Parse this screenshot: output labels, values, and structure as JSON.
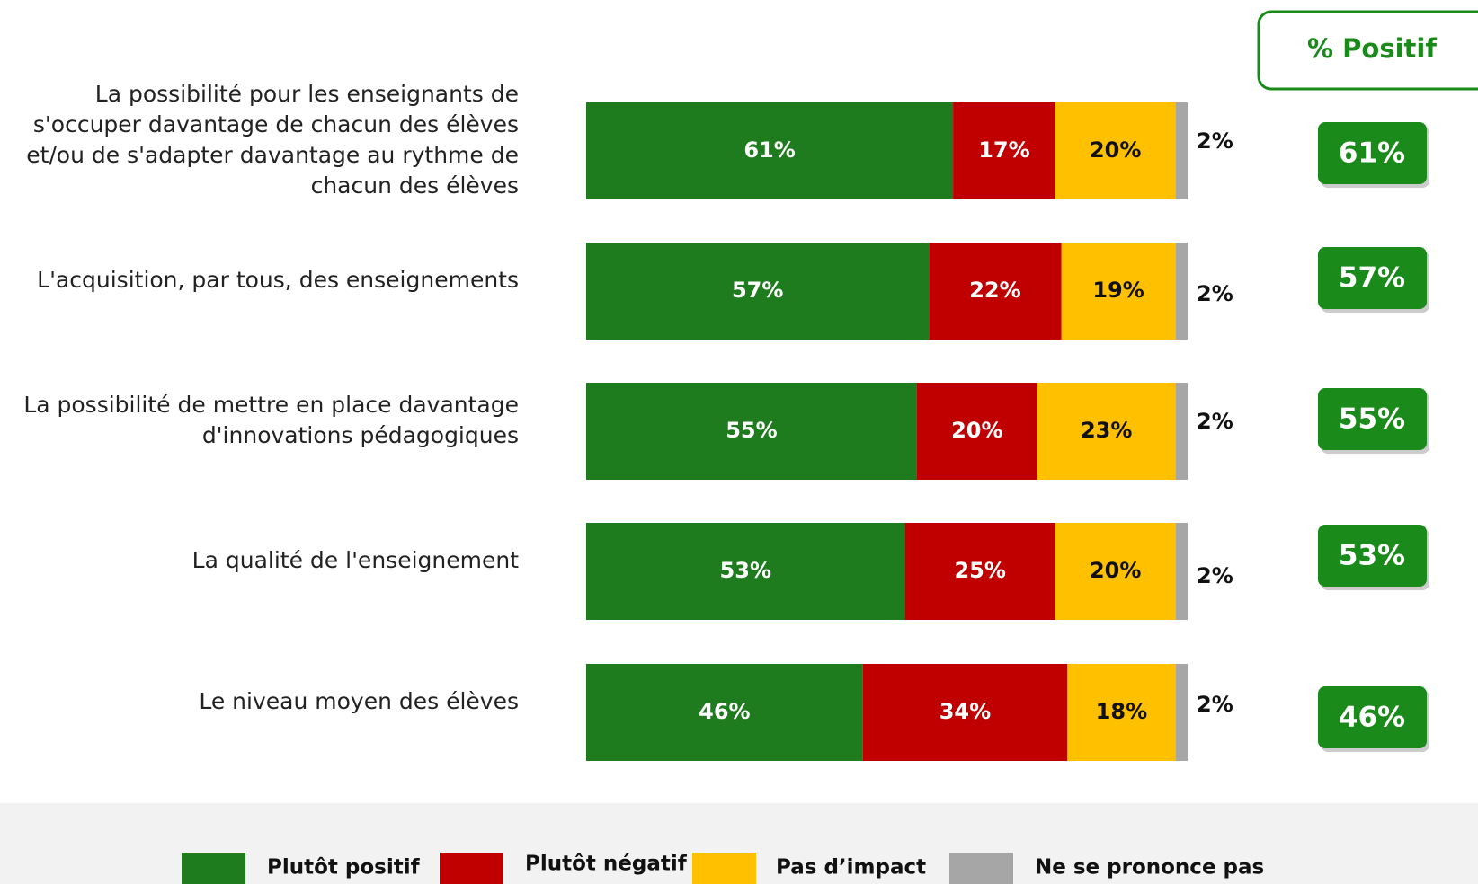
{
  "chart_data": {
    "type": "stacked_bar_horizontal",
    "categories": [
      "La possibilité pour les enseignants de s'occuper davantage de chacun des élèves et/ou de s'adapter davantage au rythme de chacun des élèves",
      "L'acquisition, par tous, des enseignements",
      "La possibilité de mettre en place davantage d'innovations pédagogiques",
      "La qualité de l'enseignement",
      "Le niveau moyen des élèves"
    ],
    "series": [
      {
        "name": "Plutôt positif",
        "color": "#1e7b1e",
        "values": [
          61,
          57,
          55,
          53,
          46
        ],
        "value_labels": [
          "61%",
          "57%",
          "55%",
          "53%",
          "46%"
        ]
      },
      {
        "name": "Plutôt négatif",
        "color": "#c00000",
        "values": [
          17,
          22,
          20,
          25,
          34
        ],
        "value_labels": [
          "17%",
          "22%",
          "20%",
          "25%",
          "34%"
        ]
      },
      {
        "name": "Pas d’impact",
        "color": "#ffc000",
        "values": [
          20,
          19,
          23,
          20,
          18
        ],
        "value_labels": [
          "20%",
          "19%",
          "23%",
          "20%",
          "18%"
        ]
      },
      {
        "name": "Ne se prononce pas",
        "color": "#a6a6a6",
        "values": [
          2,
          2,
          2,
          2,
          2
        ],
        "value_labels": [
          "2%",
          "2%",
          "2%",
          "2%",
          "2%"
        ]
      }
    ],
    "summary": {
      "title": "% Positif",
      "color": "#1a8a1a",
      "values": [
        61,
        57,
        55,
        53,
        46
      ],
      "value_labels": [
        "61%",
        "57%",
        "55%",
        "53%",
        "46%"
      ]
    },
    "xlim": [
      0,
      100
    ]
  }
}
